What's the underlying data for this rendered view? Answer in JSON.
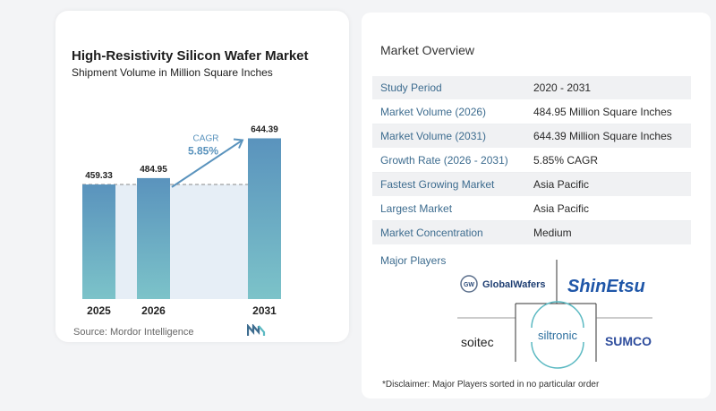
{
  "chart_data": {
    "type": "bar",
    "title": "High-Resistivity Silicon Wafer Market",
    "subtitle": "Shipment Volume in Million Square Inches",
    "categories": [
      "2025",
      "2026",
      "2031"
    ],
    "values": [
      459.33,
      484.95,
      644.39
    ],
    "value_labels": [
      "459.33",
      "484.95",
      "644.39"
    ],
    "cagr_label": "CAGR",
    "cagr_value": "5.85%",
    "bar_color_top": "#5a93bd",
    "bar_color_bottom": "#7cc3c9",
    "band_color": "#e6eef6"
  },
  "source": "Source:  Mordor Intelligence",
  "overview": {
    "title": "Market Overview",
    "rows": [
      {
        "key": "Study Period",
        "value": "2020 - 2031"
      },
      {
        "key": "Market Volume (2026)",
        "value": "484.95 Million Square Inches"
      },
      {
        "key": "Market Volume (2031)",
        "value": "644.39 Million Square Inches"
      },
      {
        "key": "Growth Rate (2026 - 2031)",
        "value": "5.85% CAGR"
      },
      {
        "key": "Fastest Growing Market",
        "value": "Asia Pacific"
      },
      {
        "key": "Largest Market",
        "value": "Asia Pacific"
      },
      {
        "key": "Market Concentration",
        "value": "Medium"
      }
    ],
    "players_title": "Major Players",
    "players": [
      "GlobalWafers",
      "ShinEtsu",
      "soitec",
      "siltronic",
      "SUMCO"
    ],
    "disclaimer": "*Disclaimer: Major Players sorted in no particular order"
  },
  "colors": {
    "key_text": "#3d6c8f",
    "accent": "#4a8fc2",
    "shinetsu_blue": "#1f56a8"
  }
}
